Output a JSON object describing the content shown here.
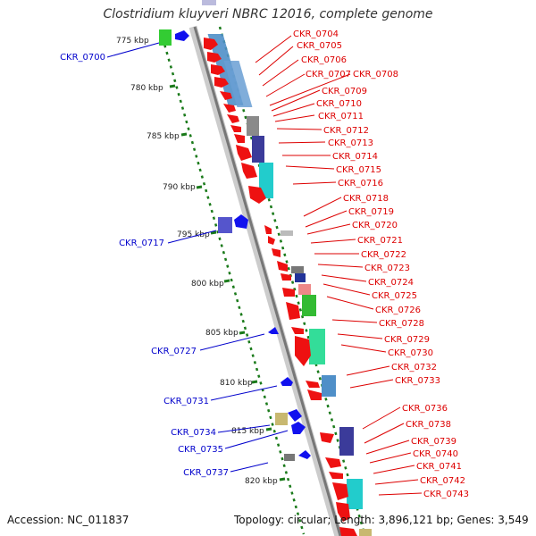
{
  "title": "Clostridium kluyveri NBRC 12016, complete genome",
  "accession": "Accession: NC_011837",
  "topology": "Topology: circular; Length: 3,896,121 bp; Genes: 3,549",
  "colors": {
    "forward": "#ee1111",
    "reverse": "#1111ee",
    "label_forward": "#dd0000",
    "label_reverse": "#0000cc",
    "backbone": "#888888",
    "scale": "#1a7a1a"
  },
  "scale": [
    "775 kbp",
    "780 kbp",
    "785 kbp",
    "790 kbp",
    "795 kbp",
    "800 kbp",
    "805 kbp",
    "810 kbp",
    "815 kbp",
    "820 kbp"
  ],
  "forward_labels": [
    "CKR_0704",
    "CKR_0705",
    "CKR_0706",
    "CKR_0707",
    "CKR_0708",
    "CKR_0709",
    "CKR_0710",
    "CKR_0711",
    "CKR_0712",
    "CKR_0713",
    "CKR_0714",
    "CKR_0715",
    "CKR_0716",
    "CKR_0718",
    "CKR_0719",
    "CKR_0720",
    "CKR_0721",
    "CKR_0722",
    "CKR_0723",
    "CKR_0724",
    "CKR_0725",
    "CKR_0726",
    "CKR_0728",
    "CKR_0729",
    "CKR_0730",
    "CKR_0732",
    "CKR_0733",
    "CKR_0736",
    "CKR_0738",
    "CKR_0739",
    "CKR_0740",
    "CKR_0741",
    "CKR_0742",
    "CKR_0743"
  ],
  "reverse_labels": [
    "CKR_0700",
    "CKR_0717",
    "CKR_0727",
    "CKR_0731",
    "CKR_0734",
    "CKR_0735",
    "CKR_0737"
  ]
}
